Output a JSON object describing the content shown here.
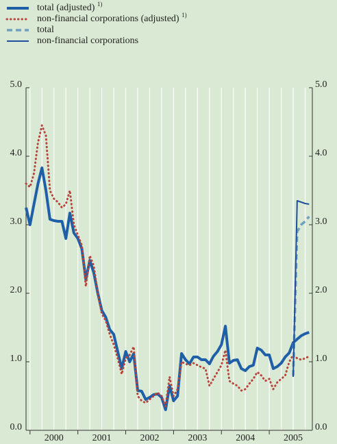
{
  "chart_data": {
    "type": "line",
    "x": [
      1999.917,
      2000,
      2000.083,
      2000.167,
      2000.25,
      2000.333,
      2000.417,
      2000.5,
      2000.583,
      2000.667,
      2000.75,
      2000.833,
      2000.917,
      2001,
      2001.083,
      2001.167,
      2001.25,
      2001.333,
      2001.417,
      2001.5,
      2001.583,
      2001.667,
      2001.75,
      2001.833,
      2001.917,
      2002,
      2002.083,
      2002.167,
      2002.25,
      2002.333,
      2002.417,
      2002.5,
      2002.583,
      2002.667,
      2002.75,
      2002.833,
      2002.917,
      2003,
      2003.083,
      2003.167,
      2003.25,
      2003.333,
      2003.417,
      2003.5,
      2003.583,
      2003.667,
      2003.75,
      2003.833,
      2003.917,
      2004,
      2004.083,
      2004.167,
      2004.25,
      2004.333,
      2004.417,
      2004.5,
      2004.583,
      2004.667,
      2004.75,
      2004.833,
      2004.917,
      2005,
      2005.083,
      2005.167,
      2005.25,
      2005.333,
      2005.417,
      2005.5,
      2005.583,
      2005.667,
      2005.75,
      2005.833
    ],
    "series": [
      {
        "name": "total (adjusted)",
        "note": "1)",
        "color": "#1f5fa8",
        "style": "thick",
        "values": [
          3.25,
          3.0,
          3.3,
          3.6,
          3.83,
          3.5,
          3.08,
          3.06,
          3.05,
          3.05,
          2.8,
          3.17,
          2.88,
          2.8,
          2.65,
          2.2,
          2.48,
          2.3,
          2.0,
          1.75,
          1.65,
          1.47,
          1.4,
          1.15,
          0.9,
          1.15,
          1.0,
          1.12,
          0.58,
          0.57,
          0.45,
          0.48,
          0.52,
          0.53,
          0.48,
          0.3,
          0.65,
          0.43,
          0.5,
          1.12,
          1.03,
          0.97,
          1.07,
          1.07,
          1.03,
          1.03,
          0.97,
          1.08,
          1.15,
          1.25,
          1.52,
          0.98,
          1.02,
          1.03,
          0.9,
          0.87,
          0.93,
          0.95,
          1.2,
          1.17,
          1.1,
          1.1,
          0.9,
          0.93,
          0.98,
          1.07,
          1.13,
          1.28,
          1.33,
          1.38,
          1.41,
          1.43
        ]
      },
      {
        "name": "non-financial corporations (adjusted)",
        "note": "1)",
        "color": "#b8433a",
        "style": "dotted",
        "values": [
          3.6,
          3.55,
          3.75,
          4.2,
          4.45,
          4.3,
          3.5,
          3.38,
          3.33,
          3.25,
          3.3,
          3.5,
          3.0,
          2.85,
          2.7,
          2.1,
          2.55,
          2.4,
          2.0,
          1.7,
          1.6,
          1.4,
          1.25,
          1.05,
          0.82,
          1.05,
          1.1,
          1.22,
          0.5,
          0.43,
          0.4,
          0.45,
          0.5,
          0.55,
          0.5,
          0.35,
          0.78,
          0.5,
          0.6,
          1.0,
          0.97,
          0.95,
          0.98,
          0.95,
          0.92,
          0.9,
          0.65,
          0.75,
          0.85,
          0.95,
          1.17,
          0.72,
          0.68,
          0.65,
          0.58,
          0.6,
          0.68,
          0.75,
          0.85,
          0.8,
          0.72,
          0.75,
          0.6,
          0.7,
          0.75,
          0.8,
          1.0,
          1.1,
          1.05,
          1.03,
          1.05,
          1.08
        ]
      },
      {
        "name": "total",
        "color": "#6fa0c0",
        "style": "dashed",
        "x": [
          2005.5,
          2005.583,
          2005.667,
          2005.75,
          2005.833
        ],
        "values": [
          0.8,
          2.9,
          3.0,
          3.05,
          3.12
        ]
      },
      {
        "name": "non-financial corporations",
        "color": "#1f4f9a",
        "style": "thin",
        "x": [
          2005.5,
          2005.583,
          2005.667,
          2005.75,
          2005.833
        ],
        "values": [
          0.78,
          3.35,
          3.33,
          3.31,
          3.3
        ]
      }
    ],
    "xlim": [
      1999.917,
      2005.9
    ],
    "xticks": [
      2000,
      2001,
      2002,
      2003,
      2004,
      2005
    ],
    "xtick_labels": [
      {
        "value": 2000.5,
        "label": "2000"
      },
      {
        "value": 2001.5,
        "label": "2001"
      },
      {
        "value": 2002.5,
        "label": "2002"
      },
      {
        "value": 2003.5,
        "label": "2003"
      },
      {
        "value": 2004.5,
        "label": "2004"
      },
      {
        "value": 2005.5,
        "label": "2005"
      }
    ],
    "xgrid": [
      2000,
      2000.25,
      2000.5,
      2000.75,
      2001,
      2001.25,
      2001.5,
      2001.75,
      2002,
      2002.25,
      2002.5,
      2002.75,
      2003,
      2003.25,
      2003.5,
      2003.75,
      2004,
      2004.25,
      2004.5,
      2004.75,
      2005,
      2005.25,
      2005.5,
      2005.75
    ],
    "ylim": [
      0,
      5
    ],
    "yticks": [
      {
        "value": 0,
        "label": "0.0"
      },
      {
        "value": 1,
        "label": "1.0"
      },
      {
        "value": 2,
        "label": "2.0"
      },
      {
        "value": 3,
        "label": "3.0"
      },
      {
        "value": 4,
        "label": "4.0"
      },
      {
        "value": 5,
        "label": "5.0"
      }
    ],
    "grid": true,
    "legend": "top-left"
  }
}
